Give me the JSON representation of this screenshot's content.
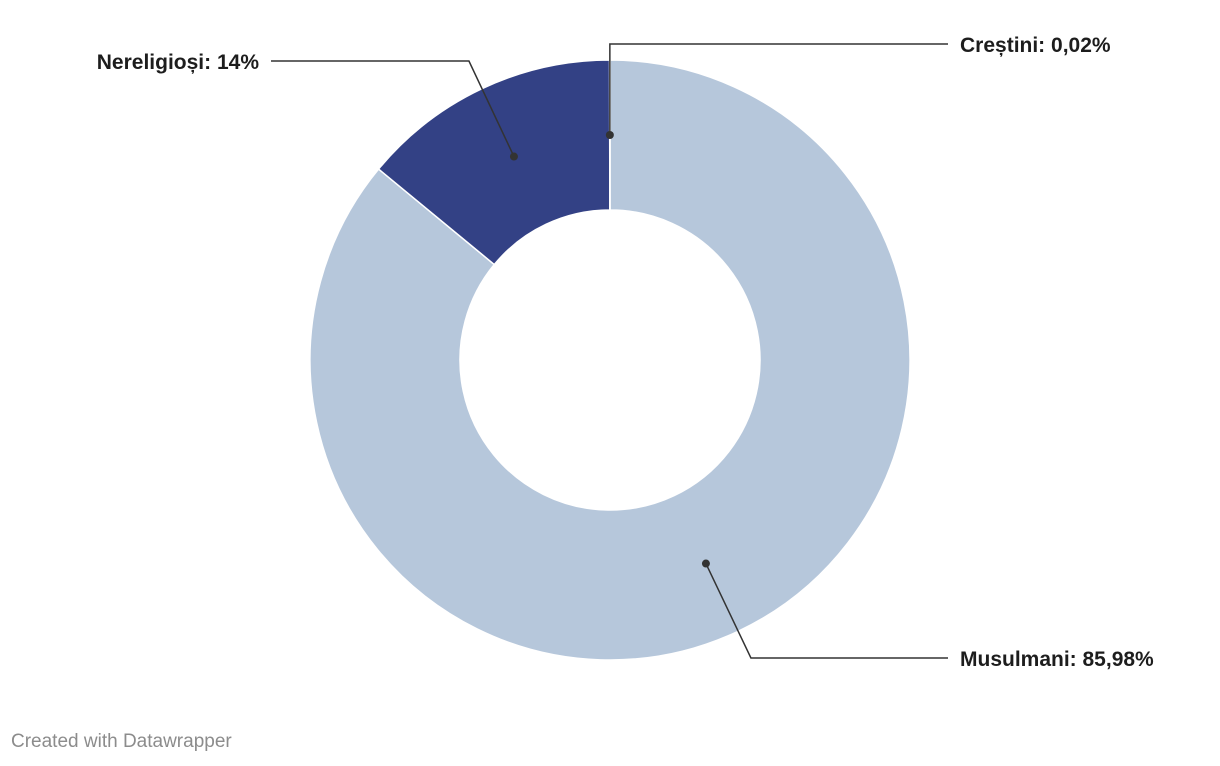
{
  "chart_data": {
    "type": "pie",
    "variant": "donut",
    "slices": [
      {
        "label": "Musulmani",
        "value": 85.98,
        "display": "85,98%",
        "color": "#b6c7db"
      },
      {
        "label": "Nereligioși",
        "value": 14,
        "display": "14%",
        "color": "#334185"
      },
      {
        "label": "Creștini",
        "value": 0.02,
        "display": "0,02%",
        "color": "#c04a4a"
      }
    ],
    "label_text": [
      "Musulmani: 85,98%",
      "Nereligioși: 14%",
      "Creștini: 0,02%"
    ],
    "legend": "none"
  },
  "footer": {
    "credit": "Created with Datawrapper"
  },
  "colors": {
    "leader_line": "#333333",
    "background": "#ffffff"
  }
}
